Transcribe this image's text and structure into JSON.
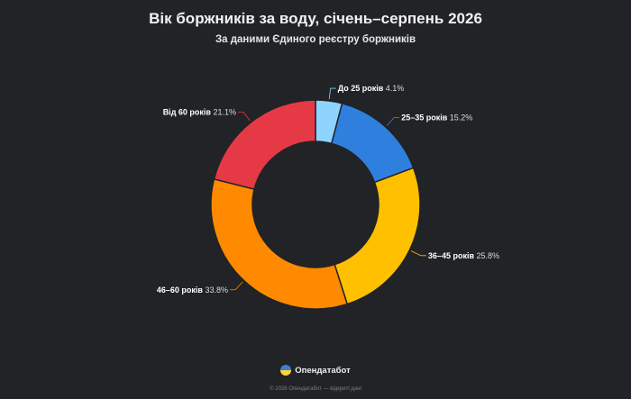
{
  "title": "Вік боржників за воду, січень–серпень 2026",
  "subtitle": "За даними Єдиного реєстру боржників",
  "chart_data": {
    "type": "pie",
    "variant": "donut",
    "title": "Вік боржників за воду, січень–серпень 2026",
    "subtitle": "За даними Єдиного реєстру боржників",
    "categories": [
      "До 25 років",
      "25–35 років",
      "36–45 років",
      "46–60 років",
      "Від 60 років"
    ],
    "values": [
      4.1,
      15.2,
      25.8,
      33.8,
      21.1
    ],
    "value_labels": [
      "4.1%",
      "15.2%",
      "25.8%",
      "33.8%",
      "21.1%"
    ],
    "colors": [
      "#8fd3ff",
      "#2f80de",
      "#ffc000",
      "#ff8a00",
      "#e63946"
    ],
    "legend": "none"
  },
  "brand": {
    "name": "Опендатабот"
  },
  "footer": {
    "text": "© 2026 Опендатабот — відкриті дані"
  }
}
